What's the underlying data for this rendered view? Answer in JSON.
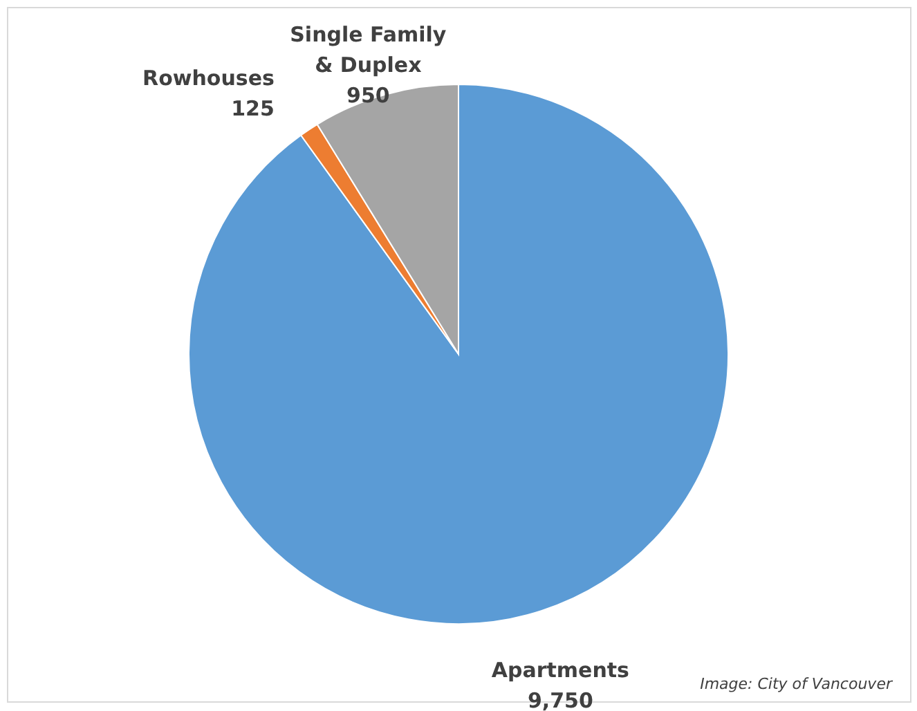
{
  "chart_data": {
    "type": "pie",
    "categories": [
      "Apartments",
      "Rowhouses",
      "Single Family & Duplex"
    ],
    "values": [
      9750,
      125,
      950
    ],
    "value_labels": [
      "9,750",
      "125",
      "950"
    ],
    "colors": [
      "#5b9bd5",
      "#ed7d31",
      "#a5a5a5"
    ],
    "annotations": [
      "Image: City of Vancouver"
    ]
  }
}
